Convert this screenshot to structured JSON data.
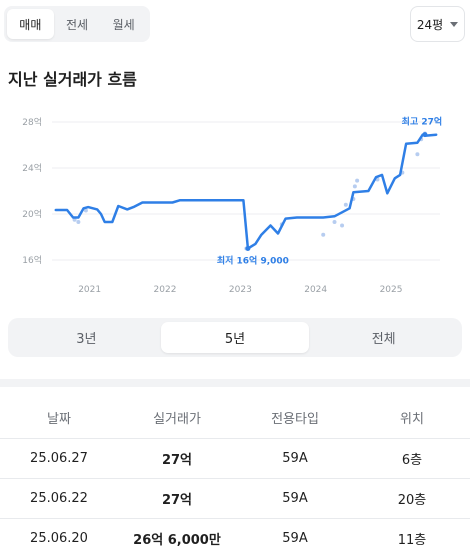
{
  "trade_tabs": {
    "items": [
      "매매",
      "전세",
      "월세"
    ],
    "active": 0
  },
  "size_selector": {
    "value": "24평"
  },
  "section_title": "지난 실거래가 흐름",
  "chart_data": {
    "type": "line",
    "title": "",
    "xlabel": "",
    "ylabel": "",
    "x_ticks": [
      "2021",
      "2022",
      "2023",
      "2024",
      "2025"
    ],
    "y_ticks": [
      "28억",
      "24억",
      "20억",
      "16억"
    ],
    "ylim": [
      16,
      28
    ],
    "y_unit": "억",
    "grid": true,
    "series": [
      {
        "points": [
          [
            2020.55,
            20.35
          ],
          [
            2020.7,
            20.35
          ],
          [
            2020.78,
            19.7
          ],
          [
            2020.85,
            19.7
          ],
          [
            2020.92,
            20.5
          ],
          [
            2020.98,
            20.6
          ],
          [
            2021.1,
            20.4
          ],
          [
            2021.15,
            20.0
          ],
          [
            2021.2,
            19.3
          ],
          [
            2021.3,
            19.3
          ],
          [
            2021.38,
            20.7
          ],
          [
            2021.5,
            20.4
          ],
          [
            2021.58,
            20.6
          ],
          [
            2021.7,
            21.0
          ],
          [
            2022.1,
            21.0
          ],
          [
            2022.2,
            21.2
          ],
          [
            2022.4,
            21.2
          ],
          [
            2022.85,
            21.2
          ],
          [
            2023.04,
            21.2
          ],
          [
            2023.1,
            17.0
          ],
          [
            2023.2,
            17.4
          ],
          [
            2023.28,
            18.2
          ],
          [
            2023.4,
            19.0
          ],
          [
            2023.5,
            18.3
          ],
          [
            2023.6,
            19.6
          ],
          [
            2023.75,
            19.7
          ],
          [
            2024.0,
            19.7
          ],
          [
            2024.1,
            19.7
          ],
          [
            2024.25,
            19.8
          ],
          [
            2024.45,
            20.5
          ],
          [
            2024.5,
            21.9
          ],
          [
            2024.7,
            22.0
          ],
          [
            2024.8,
            23.2
          ],
          [
            2024.88,
            23.4
          ],
          [
            2024.95,
            21.8
          ],
          [
            2025.05,
            23.1
          ],
          [
            2025.12,
            23.4
          ],
          [
            2025.2,
            26.1
          ],
          [
            2025.35,
            26.2
          ],
          [
            2025.42,
            26.9
          ],
          [
            2025.45,
            26.8
          ],
          [
            2025.6,
            26.9
          ]
        ]
      }
    ],
    "scatter_points": [
      [
        2020.8,
        19.5
      ],
      [
        2020.85,
        19.3
      ],
      [
        2020.95,
        20.3
      ],
      [
        2023.08,
        17.0
      ],
      [
        2023.55,
        19.1
      ],
      [
        2024.1,
        18.2
      ],
      [
        2024.25,
        19.3
      ],
      [
        2024.35,
        19.0
      ],
      [
        2024.4,
        20.8
      ],
      [
        2024.5,
        21.3
      ],
      [
        2024.52,
        22.4
      ],
      [
        2024.55,
        22.9
      ],
      [
        2024.82,
        23.0
      ],
      [
        2025.15,
        23.6
      ],
      [
        2025.35,
        25.2
      ],
      [
        2025.4,
        26.5
      ],
      [
        2025.45,
        27.0
      ]
    ],
    "annotations": {
      "max": {
        "label": "최고 27억",
        "x": 2025.45,
        "y": 26.9
      },
      "min": {
        "label": "최저 16억 9,000",
        "x": 2023.1,
        "y": 17.0
      }
    },
    "colors": {
      "line": "#2f7fe6",
      "scatter": "#b7cdf0",
      "grid": "#eceef1"
    }
  },
  "period_tabs": {
    "items": [
      "3년",
      "5년",
      "전체"
    ],
    "active": 1
  },
  "table": {
    "headers": [
      "날짜",
      "실거래가",
      "전용타입",
      "위치"
    ],
    "rows": [
      [
        "25.06.27",
        "27억",
        "59A",
        "6층"
      ],
      [
        "25.06.22",
        "27억",
        "59A",
        "20층"
      ],
      [
        "25.06.20",
        "26억 6,000만",
        "59A",
        "11층"
      ]
    ]
  }
}
